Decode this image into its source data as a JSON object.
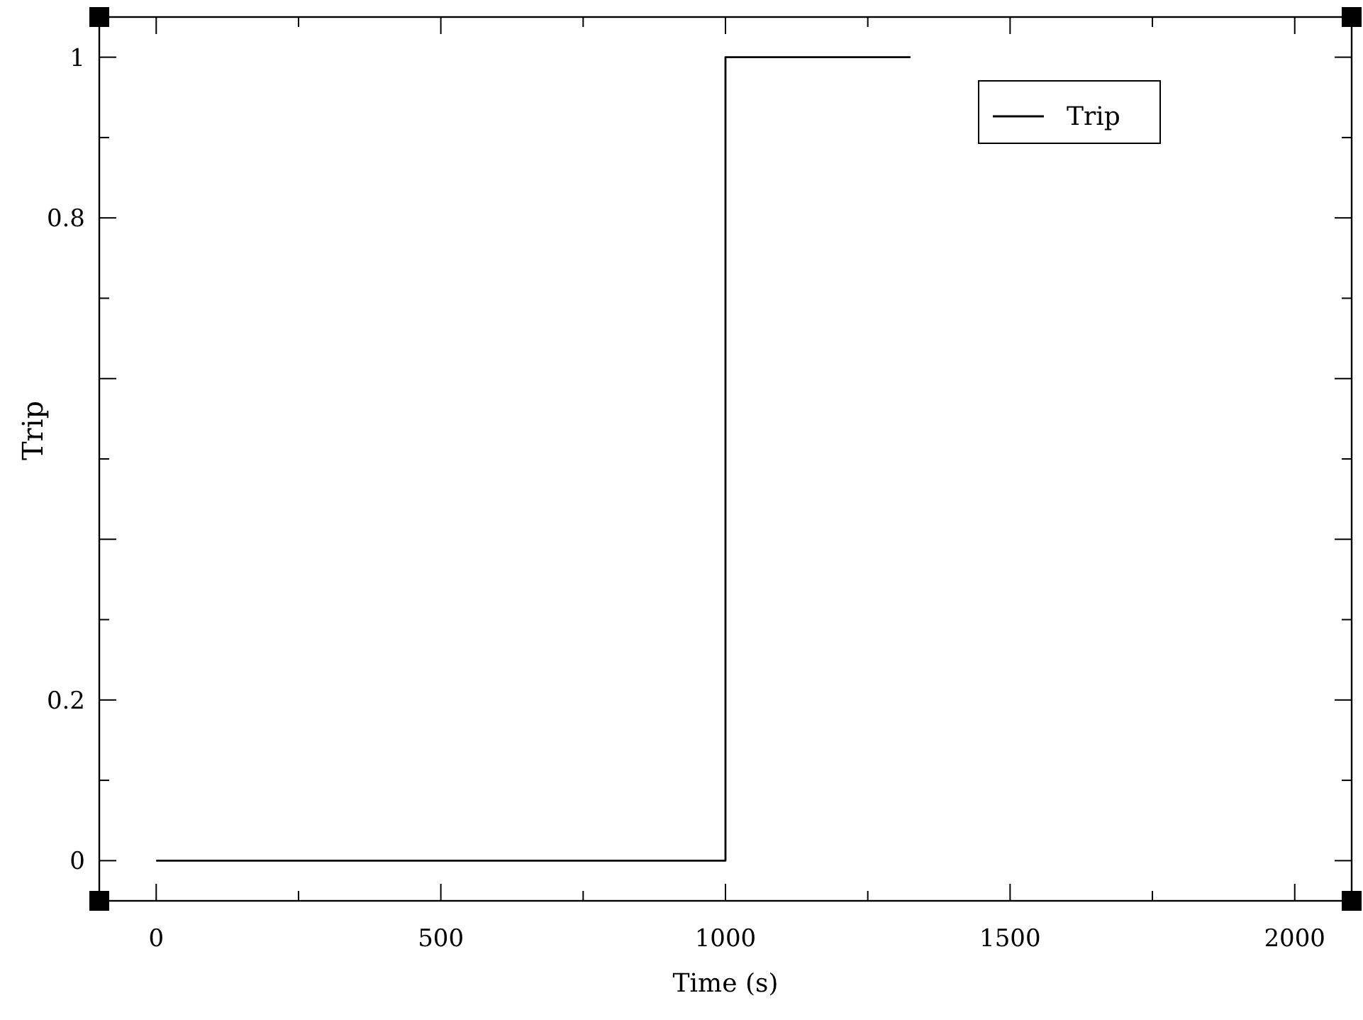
{
  "chart_data": {
    "type": "step",
    "xlabel": "Time (s)",
    "ylabel": "Trip",
    "series": [
      {
        "name": "Trip",
        "color": "#000000",
        "x": [
          0,
          1000,
          1325
        ],
        "values": [
          0,
          1,
          1
        ]
      }
    ],
    "xlim": [
      -100,
      2100
    ],
    "xticks": [
      0,
      {
        "value": 250,
        "label": null
      },
      500,
      {
        "value": 750,
        "label": null
      },
      1000,
      {
        "value": 1250,
        "label": null
      },
      1500,
      {
        "value": 1750,
        "label": null
      },
      2000
    ],
    "ylim": [
      -0.05,
      1.05
    ],
    "yticks": [
      0,
      {
        "value": 0.1,
        "label": null
      },
      0.2,
      {
        "value": 0.3,
        "label": null
      },
      {
        "value": 0.4,
        "label": null
      },
      {
        "value": 0.5,
        "label": null
      },
      {
        "value": 0.6,
        "label": null
      },
      {
        "value": 0.7,
        "label": null
      },
      0.8,
      {
        "value": 0.9,
        "label": null
      },
      1
    ],
    "legend": "top right",
    "grid": false,
    "line_style": "solid",
    "marker": "none"
  }
}
